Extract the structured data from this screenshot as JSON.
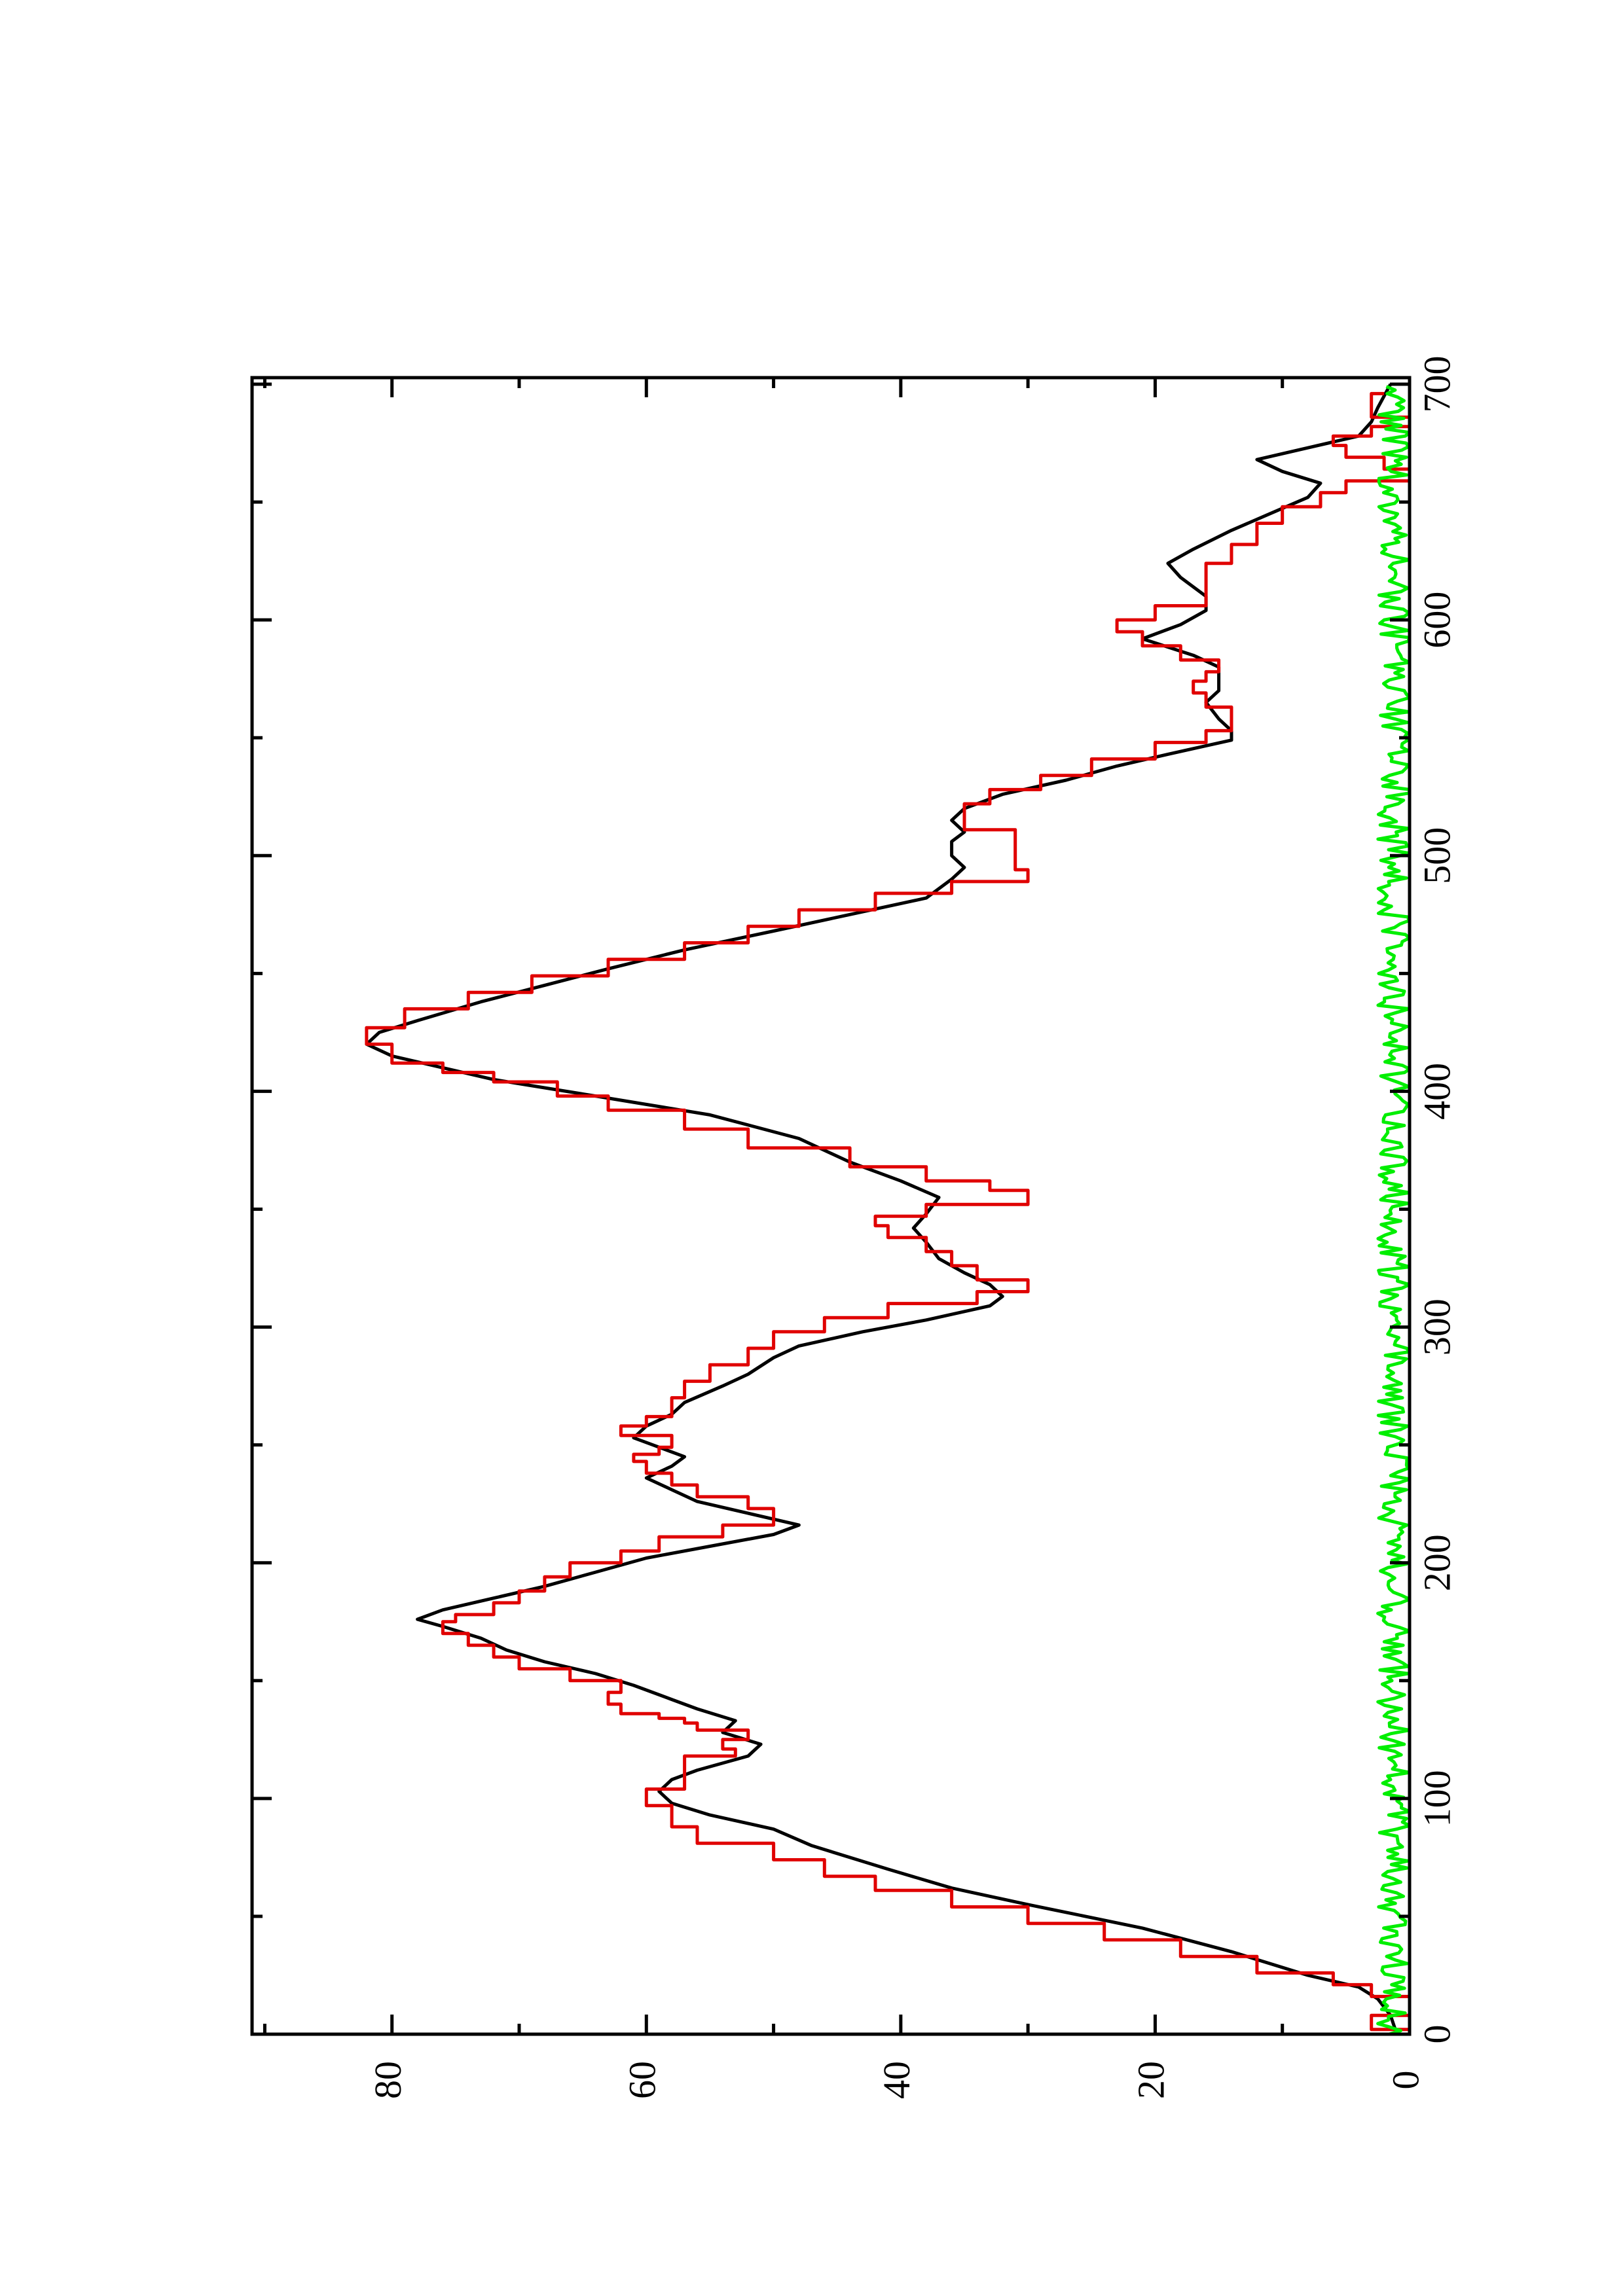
{
  "chart_data": {
    "type": "line",
    "orientation": "rotated-90-ccw",
    "title": "",
    "xlabel": "",
    "ylabel": "",
    "xlim": [
      0,
      700
    ],
    "ylim": [
      0,
      91
    ],
    "grid": false,
    "legend": "none",
    "x_ticks": [
      0,
      100,
      200,
      300,
      400,
      500,
      600,
      700
    ],
    "y_ticks": [
      0,
      20,
      40,
      60,
      80
    ],
    "series": [
      {
        "color": "#000000",
        "style": "smooth",
        "points": [
          [
            0,
            1
          ],
          [
            8,
            1.5
          ],
          [
            15,
            2.5
          ],
          [
            20,
            4
          ],
          [
            25,
            8
          ],
          [
            35,
            14
          ],
          [
            45,
            21
          ],
          [
            55,
            30
          ],
          [
            62,
            36
          ],
          [
            70,
            41
          ],
          [
            80,
            47
          ],
          [
            87,
            50
          ],
          [
            93,
            55
          ],
          [
            98,
            58
          ],
          [
            103,
            59
          ],
          [
            108,
            58
          ],
          [
            112,
            56
          ],
          [
            118,
            52
          ],
          [
            123,
            51
          ],
          [
            128,
            54
          ],
          [
            133,
            53
          ],
          [
            138,
            56
          ],
          [
            142,
            58
          ],
          [
            148,
            61
          ],
          [
            153,
            64
          ],
          [
            158,
            68
          ],
          [
            163,
            71
          ],
          [
            168,
            73
          ],
          [
            173,
            76
          ],
          [
            176,
            78
          ],
          [
            180,
            76
          ],
          [
            185,
            72
          ],
          [
            190,
            68
          ],
          [
            196,
            64
          ],
          [
            202,
            60
          ],
          [
            207,
            55
          ],
          [
            212,
            50
          ],
          [
            216,
            48
          ],
          [
            221,
            52
          ],
          [
            226,
            56
          ],
          [
            231,
            58
          ],
          [
            236,
            60
          ],
          [
            241,
            58
          ],
          [
            245,
            57
          ],
          [
            249,
            59
          ],
          [
            253,
            61
          ],
          [
            258,
            60
          ],
          [
            263,
            58
          ],
          [
            268,
            57
          ],
          [
            275,
            54
          ],
          [
            280,
            52
          ],
          [
            287,
            50
          ],
          [
            292,
            48
          ],
          [
            298,
            43
          ],
          [
            303,
            38
          ],
          [
            309,
            33
          ],
          [
            313,
            32
          ],
          [
            318,
            33
          ],
          [
            323,
            35
          ],
          [
            329,
            37
          ],
          [
            336,
            38
          ],
          [
            342,
            39
          ],
          [
            348,
            38
          ],
          [
            355,
            37
          ],
          [
            362,
            40
          ],
          [
            370,
            44
          ],
          [
            380,
            48
          ],
          [
            390,
            55
          ],
          [
            398,
            64
          ],
          [
            405,
            72
          ],
          [
            410,
            76
          ],
          [
            415,
            80
          ],
          [
            420,
            82
          ],
          [
            425,
            81
          ],
          [
            430,
            78
          ],
          [
            438,
            73
          ],
          [
            445,
            68
          ],
          [
            452,
            63
          ],
          [
            460,
            57
          ],
          [
            468,
            50
          ],
          [
            475,
            44
          ],
          [
            482,
            38
          ],
          [
            490,
            36
          ],
          [
            495,
            35
          ],
          [
            500,
            36
          ],
          [
            506,
            36
          ],
          [
            510,
            35
          ],
          [
            515,
            36
          ],
          [
            520,
            35
          ],
          [
            526,
            32
          ],
          [
            532,
            27
          ],
          [
            538,
            23
          ],
          [
            543,
            19
          ],
          [
            549,
            14
          ],
          [
            553,
            14
          ],
          [
            558,
            15
          ],
          [
            565,
            16
          ],
          [
            570,
            15
          ],
          [
            575,
            15
          ],
          [
            580,
            15
          ],
          [
            585,
            17
          ],
          [
            592,
            21
          ],
          [
            598,
            18
          ],
          [
            604,
            16
          ],
          [
            610,
            16
          ],
          [
            618,
            18
          ],
          [
            624,
            19
          ],
          [
            630,
            17
          ],
          [
            638,
            14
          ],
          [
            645,
            11
          ],
          [
            652,
            8
          ],
          [
            658,
            7
          ],
          [
            663,
            10
          ],
          [
            668,
            12
          ],
          [
            673,
            8
          ],
          [
            678,
            4
          ],
          [
            684,
            3
          ],
          [
            690,
            2.5
          ],
          [
            700,
            1.5
          ]
        ]
      },
      {
        "color": "#e00000",
        "style": "stepped",
        "points": [
          [
            0,
            0
          ],
          [
            2,
            3
          ],
          [
            6,
            3
          ],
          [
            8,
            0
          ],
          [
            12,
            0
          ],
          [
            16,
            3
          ],
          [
            21,
            6
          ],
          [
            26,
            12
          ],
          [
            33,
            18
          ],
          [
            40,
            24
          ],
          [
            47,
            30
          ],
          [
            54,
            36
          ],
          [
            61,
            42
          ],
          [
            67,
            46
          ],
          [
            74,
            50
          ],
          [
            81,
            56
          ],
          [
            88,
            58
          ],
          [
            97,
            60
          ],
          [
            104,
            57
          ],
          [
            113,
            57
          ],
          [
            118,
            53
          ],
          [
            121,
            54
          ],
          [
            125,
            52
          ],
          [
            129,
            56
          ],
          [
            132,
            57
          ],
          [
            134,
            59
          ],
          [
            136,
            62
          ],
          [
            140,
            63
          ],
          [
            145,
            62
          ],
          [
            150,
            66
          ],
          [
            155,
            70
          ],
          [
            160,
            72
          ],
          [
            165,
            74
          ],
          [
            170,
            76
          ],
          [
            175,
            75
          ],
          [
            178,
            72
          ],
          [
            183,
            70
          ],
          [
            188,
            68
          ],
          [
            194,
            66
          ],
          [
            200,
            62
          ],
          [
            205,
            59
          ],
          [
            211,
            54
          ],
          [
            216,
            50
          ],
          [
            223,
            52
          ],
          [
            228,
            56
          ],
          [
            233,
            58
          ],
          [
            238,
            60
          ],
          [
            243,
            61
          ],
          [
            246,
            59
          ],
          [
            249,
            58
          ],
          [
            254,
            62
          ],
          [
            258,
            60
          ],
          [
            262,
            58
          ],
          [
            270,
            57
          ],
          [
            277,
            55
          ],
          [
            284,
            52
          ],
          [
            291,
            50
          ],
          [
            298,
            46
          ],
          [
            304,
            41
          ],
          [
            310,
            34
          ],
          [
            315,
            30
          ],
          [
            320,
            34
          ],
          [
            326,
            36
          ],
          [
            332,
            38
          ],
          [
            338,
            41
          ],
          [
            343,
            42
          ],
          [
            347,
            38
          ],
          [
            352,
            30
          ],
          [
            358,
            33
          ],
          [
            362,
            38
          ],
          [
            368,
            44
          ],
          [
            376,
            52
          ],
          [
            384,
            57
          ],
          [
            392,
            63
          ],
          [
            398,
            67
          ],
          [
            404,
            72
          ],
          [
            408,
            76
          ],
          [
            412,
            80
          ],
          [
            420,
            82
          ],
          [
            427,
            79
          ],
          [
            435,
            74
          ],
          [
            442,
            69
          ],
          [
            449,
            63
          ],
          [
            456,
            57
          ],
          [
            463,
            52
          ],
          [
            470,
            48
          ],
          [
            477,
            42
          ],
          [
            484,
            36
          ],
          [
            489,
            30
          ],
          [
            494,
            31
          ],
          [
            505,
            31
          ],
          [
            511,
            35
          ],
          [
            516,
            35
          ],
          [
            522,
            33
          ],
          [
            528,
            29
          ],
          [
            534,
            25
          ],
          [
            541,
            20
          ],
          [
            548,
            16
          ],
          [
            553,
            14
          ],
          [
            558,
            14
          ],
          [
            563,
            16
          ],
          [
            569,
            17
          ],
          [
            574,
            16
          ],
          [
            578,
            15
          ],
          [
            583,
            18
          ],
          [
            589,
            21
          ],
          [
            595,
            23
          ],
          [
            600,
            20
          ],
          [
            606,
            16
          ],
          [
            614,
            16
          ],
          [
            624,
            14
          ],
          [
            632,
            12
          ],
          [
            641,
            10
          ],
          [
            648,
            7
          ],
          [
            654,
            5
          ],
          [
            659,
            0
          ],
          [
            664,
            2
          ],
          [
            669,
            5
          ],
          [
            674,
            6
          ],
          [
            678,
            3
          ],
          [
            682,
            0
          ],
          [
            686,
            3
          ],
          [
            692,
            3
          ],
          [
            696,
            2
          ]
        ]
      },
      {
        "color": "#00ee00",
        "style": "noise",
        "baseline": 1.2,
        "amplitude": 1.3,
        "x_range": [
          0,
          700
        ]
      }
    ]
  }
}
